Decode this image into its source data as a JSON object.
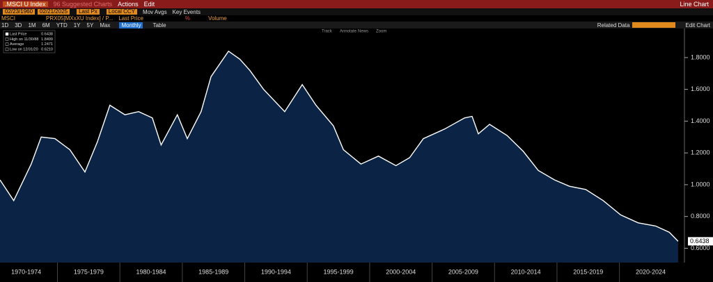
{
  "toolbar": {
    "security": ".MSCI U Index",
    "suggested": "96 Suggested Charts",
    "actions": "Actions",
    "edit": "Edit",
    "chart_kind": "Line Chart",
    "start_date": "02/23/1960",
    "end_date": "02/21/2025",
    "field": "Last Px",
    "currency": "Local CCY",
    "mov_avgs": "Mov Avgs",
    "key_events": "Key Events",
    "series_name": "MSCI",
    "series_field": "PRX05[MXxXU Index] / P...",
    "price": "Last Price",
    "pct": "%",
    "volume": "Volume",
    "periods": [
      "1D",
      "3D",
      "1M",
      "6M",
      "YTD",
      "1Y",
      "5Y",
      "Max"
    ],
    "frequency": "Monthly",
    "table": "Table",
    "related": "Related Data",
    "edit_chart": "Edit Chart",
    "tools": [
      "Track",
      "Annotate",
      "News",
      "Zoom"
    ]
  },
  "chart_data": {
    "type": "area",
    "legend": [
      {
        "label": "Last Price",
        "value": "0.6438"
      },
      {
        "label": "High on 11/30/88",
        "value": "1.8499"
      },
      {
        "label": "Average",
        "value": "1.2471"
      },
      {
        "label": "Low on 12/31/20",
        "value": "0.6210"
      }
    ],
    "x": [
      1970.4,
      1971.5,
      1972.9,
      1973.7,
      1974.8,
      1976.0,
      1977.2,
      1978.2,
      1979.2,
      1980.4,
      1981.5,
      1982.6,
      1983.3,
      1984.6,
      1985.4,
      1986.5,
      1987.3,
      1988.7,
      1989.6,
      1990.4,
      1991.5,
      1993.2,
      1994.6,
      1995.7,
      1997.1,
      1997.9,
      1999.3,
      2000.7,
      2002.1,
      2003.2,
      2004.3,
      2006.0,
      2007.6,
      2008.2,
      2008.7,
      2009.6,
      2011.0,
      2012.3,
      2013.5,
      2014.8,
      2016.0,
      2017.3,
      2018.7,
      2020.1,
      2021.5,
      2022.9,
      2024.0,
      2024.7
    ],
    "series": [
      {
        "name": "Last Price",
        "color": "#ffffff",
        "fill": "#0b2445",
        "values": [
          1.03,
          0.9,
          1.13,
          1.3,
          1.29,
          1.22,
          1.08,
          1.27,
          1.5,
          1.44,
          1.46,
          1.42,
          1.25,
          1.44,
          1.29,
          1.46,
          1.68,
          1.84,
          1.79,
          1.72,
          1.6,
          1.46,
          1.63,
          1.5,
          1.37,
          1.22,
          1.13,
          1.18,
          1.12,
          1.17,
          1.29,
          1.35,
          1.42,
          1.43,
          1.32,
          1.38,
          1.31,
          1.21,
          1.09,
          1.03,
          0.99,
          0.97,
          0.9,
          0.81,
          0.76,
          0.74,
          0.7,
          0.6438
        ]
      }
    ],
    "xlim": [
      1970.4,
      2025.15
    ],
    "xticks": [
      {
        "value": 1972.5,
        "label": "1970-1974"
      },
      {
        "value": 1977.5,
        "label": "1975-1979"
      },
      {
        "value": 1982.5,
        "label": "1980-1984"
      },
      {
        "value": 1987.5,
        "label": "1985-1989"
      },
      {
        "value": 1992.5,
        "label": "1990-1994"
      },
      {
        "value": 1997.5,
        "label": "1995-1999"
      },
      {
        "value": 2002.5,
        "label": "2000-2004"
      },
      {
        "value": 2007.5,
        "label": "2005-2009"
      },
      {
        "value": 2012.5,
        "label": "2010-2014"
      },
      {
        "value": 2017.5,
        "label": "2015-2019"
      },
      {
        "value": 2022.5,
        "label": "2020-2024"
      }
    ],
    "ylim": [
      0.51,
      1.97
    ],
    "yticks": [
      {
        "value": 0.6,
        "label": "0.6000"
      },
      {
        "value": 0.8,
        "label": "0.8000"
      },
      {
        "value": 1.0,
        "label": "1.0000"
      },
      {
        "value": 1.2,
        "label": "1.2000"
      },
      {
        "value": 1.4,
        "label": "1.4000"
      },
      {
        "value": 1.6,
        "label": "1.6000"
      },
      {
        "value": 1.8,
        "label": "1.8000"
      }
    ],
    "grid": false
  }
}
